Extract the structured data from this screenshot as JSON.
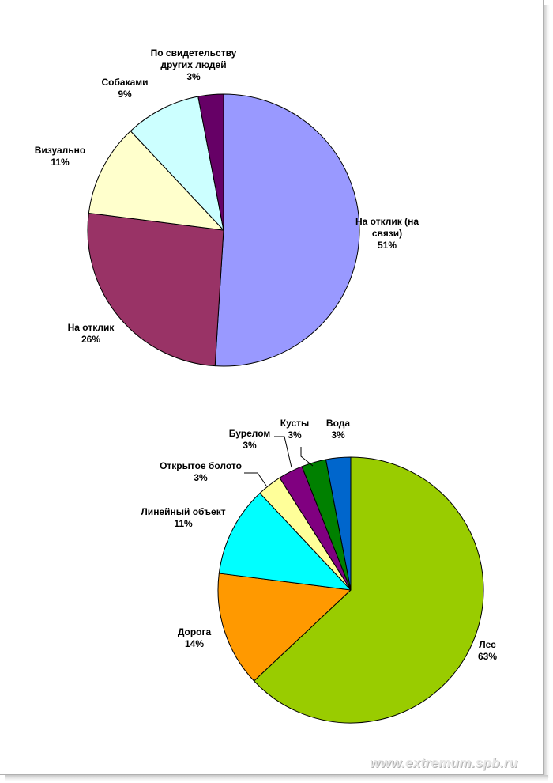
{
  "chart_data": [
    {
      "type": "pie",
      "title": "",
      "legend": "none",
      "slices": [
        {
          "label": "На отклик (на связи)",
          "label_lines": [
            "На отклик (на",
            "связи)"
          ],
          "value": 51,
          "value_label": "51%",
          "color": "#9999ff"
        },
        {
          "label": "На отклик",
          "label_lines": [
            "На отклик"
          ],
          "value": 26,
          "value_label": "26%",
          "color": "#993366"
        },
        {
          "label": "Визуально",
          "label_lines": [
            "Визуально"
          ],
          "value": 11,
          "value_label": "11%",
          "color": "#ffffcc"
        },
        {
          "label": "Собаками",
          "label_lines": [
            "Собаками"
          ],
          "value": 9,
          "value_label": "9%",
          "color": "#ccffff"
        },
        {
          "label": "По свидетельству других людей",
          "label_lines": [
            "По свидетельству",
            "других людей"
          ],
          "value": 3,
          "value_label": "3%",
          "color": "#660066"
        }
      ]
    },
    {
      "type": "pie",
      "title": "",
      "legend": "none",
      "slices": [
        {
          "label": "Лес",
          "label_lines": [
            "Лес"
          ],
          "value": 63,
          "value_label": "63%",
          "color": "#99cc00"
        },
        {
          "label": "Дорога",
          "label_lines": [
            "Дорога"
          ],
          "value": 14,
          "value_label": "14%",
          "color": "#ff9900"
        },
        {
          "label": "Линейный объект",
          "label_lines": [
            "Линейный объект"
          ],
          "value": 11,
          "value_label": "11%",
          "color": "#00ffff"
        },
        {
          "label": "Открытое болото",
          "label_lines": [
            "Открытое болото"
          ],
          "value": 3,
          "value_label": "3%",
          "color": "#ffff99"
        },
        {
          "label": "Бурелом",
          "label_lines": [
            "Бурелом"
          ],
          "value": 3,
          "value_label": "3%",
          "color": "#800080"
        },
        {
          "label": "Кусты",
          "label_lines": [
            "Кусты"
          ],
          "value": 3,
          "value_label": "3%",
          "color": "#008000"
        },
        {
          "label": "Вода",
          "label_lines": [
            "Вода"
          ],
          "value": 3,
          "value_label": "3%",
          "color": "#0066cc"
        }
      ]
    }
  ],
  "watermark": "www.extremum.spb.ru"
}
